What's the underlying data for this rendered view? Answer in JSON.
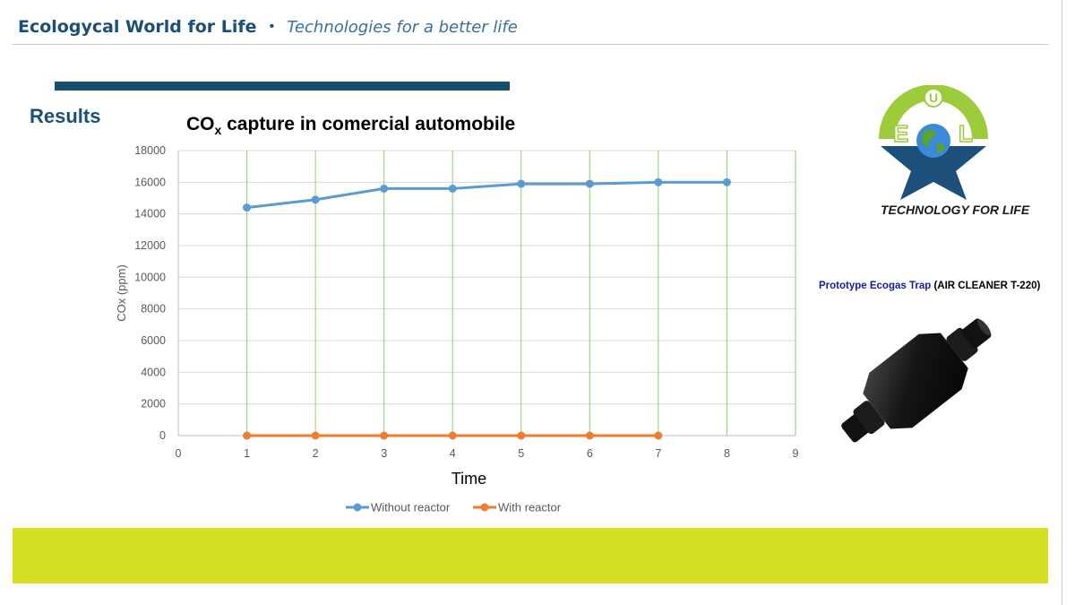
{
  "header": {
    "brand": "Ecologycal World for Life",
    "separator": "•",
    "tagline": "Technologies for a better life"
  },
  "section_title": "Results",
  "logo": {
    "text": "TECHNOLOGY FOR LIFE",
    "letters": [
      "E",
      "U",
      "O",
      "L"
    ],
    "colors": {
      "ring": "#9ccc3c",
      "star": "#1c4f7a"
    }
  },
  "product_caption": {
    "name": "Prototype Ecogas Trap",
    "model": "(AIR CLEANER T-220)"
  },
  "colors": {
    "header_text": "#1b4f7a",
    "accent_bar": "#17506e",
    "bottom_band": "#d5e023",
    "gridline_vertical": "#8fd16a",
    "gridline_horizontal": "#d9d9d9"
  },
  "chart_data": {
    "type": "line",
    "title": "CO",
    "title_subscript": "x",
    "title_rest": " capture in comercial automobile",
    "xlabel": "Time",
    "ylabel": "COx  (ppm)",
    "xlim": [
      0,
      9
    ],
    "ylim": [
      0,
      18000
    ],
    "xticks": [
      0,
      1,
      2,
      3,
      4,
      5,
      6,
      7,
      8,
      9
    ],
    "yticks": [
      0,
      2000,
      4000,
      6000,
      8000,
      10000,
      12000,
      14000,
      16000,
      18000
    ],
    "grid": true,
    "legend_position": "bottom",
    "series": [
      {
        "name": "Without reactor",
        "color": "#5b9bd5",
        "x": [
          1,
          2,
          3,
          4,
          5,
          6,
          7,
          8
        ],
        "y": [
          14400,
          14900,
          15600,
          15600,
          15900,
          15900,
          16000,
          16000
        ]
      },
      {
        "name": "With reactor",
        "color": "#ed7d31",
        "x": [
          1,
          2,
          3,
          4,
          5,
          6,
          7
        ],
        "y": [
          0,
          0,
          0,
          0,
          0,
          0,
          0
        ]
      }
    ]
  }
}
